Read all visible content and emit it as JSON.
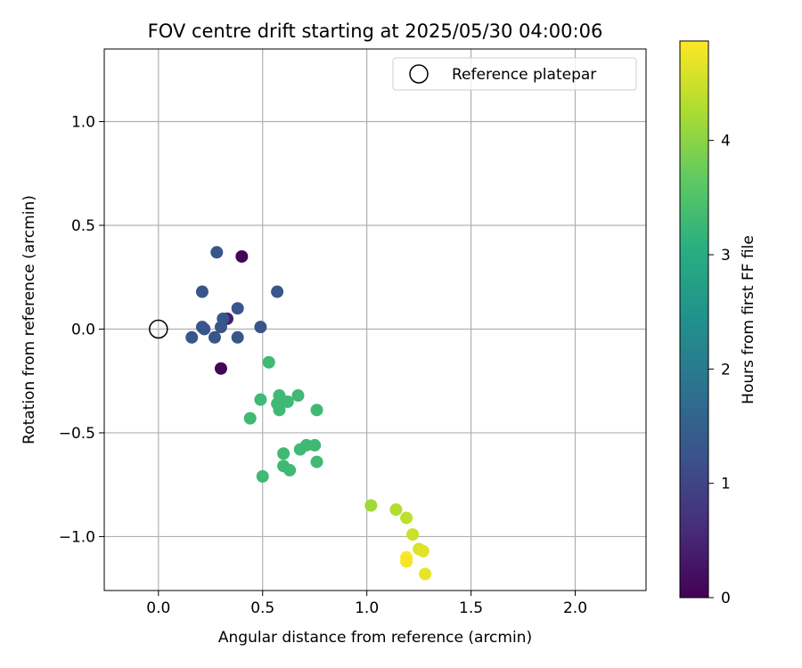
{
  "chart_data": {
    "type": "scatter",
    "title": "FOV centre drift starting at 2025/05/30 04:00:06",
    "xlabel": "Angular distance from reference (arcmin)",
    "ylabel": "Rotation from reference (arcmin)",
    "xlim": [
      -0.26,
      2.34
    ],
    "ylim": [
      -1.26,
      1.35
    ],
    "xticks": [
      0.0,
      0.5,
      1.0,
      1.5,
      2.0
    ],
    "xtick_labels": [
      "0.0",
      "0.5",
      "1.0",
      "1.5",
      "2.0"
    ],
    "yticks": [
      -1.0,
      -0.5,
      0.0,
      0.5,
      1.0
    ],
    "ytick_labels": [
      "−1.0",
      "−0.5",
      "0.0",
      "0.5",
      "1.0"
    ],
    "grid": true,
    "legend": {
      "position": "top-right",
      "entries": [
        "Reference platepar"
      ]
    },
    "reference": {
      "x": 0.0,
      "y": 0.0
    },
    "colorbar": {
      "label": "Hours from first FF file",
      "range": [
        0,
        4.87
      ],
      "ticks": [
        0,
        1,
        2,
        3,
        4
      ],
      "tick_labels": [
        "0",
        "1",
        "2",
        "3",
        "4"
      ],
      "colormap": "viridis"
    },
    "points": [
      {
        "x": 0.4,
        "y": 0.35,
        "hours": 0.05
      },
      {
        "x": 0.3,
        "y": -0.19,
        "hours": 0.05
      },
      {
        "x": 0.33,
        "y": 0.05,
        "hours": 0.4
      },
      {
        "x": 0.28,
        "y": 0.37,
        "hours": 1.3
      },
      {
        "x": 0.21,
        "y": 0.18,
        "hours": 1.3
      },
      {
        "x": 0.57,
        "y": 0.18,
        "hours": 1.3
      },
      {
        "x": 0.38,
        "y": 0.1,
        "hours": 1.3
      },
      {
        "x": 0.31,
        "y": 0.05,
        "hours": 1.3
      },
      {
        "x": 0.21,
        "y": 0.01,
        "hours": 1.3
      },
      {
        "x": 0.3,
        "y": 0.01,
        "hours": 1.3
      },
      {
        "x": 0.49,
        "y": 0.01,
        "hours": 1.3
      },
      {
        "x": 0.22,
        "y": 0.0,
        "hours": 1.3
      },
      {
        "x": 0.16,
        "y": -0.04,
        "hours": 1.3
      },
      {
        "x": 0.27,
        "y": -0.04,
        "hours": 1.3
      },
      {
        "x": 0.38,
        "y": -0.04,
        "hours": 1.3
      },
      {
        "x": 0.53,
        "y": -0.16,
        "hours": 3.3
      },
      {
        "x": 0.58,
        "y": -0.32,
        "hours": 3.3
      },
      {
        "x": 0.67,
        "y": -0.32,
        "hours": 3.3
      },
      {
        "x": 0.49,
        "y": -0.34,
        "hours": 3.3
      },
      {
        "x": 0.57,
        "y": -0.36,
        "hours": 3.3
      },
      {
        "x": 0.62,
        "y": -0.35,
        "hours": 3.3
      },
      {
        "x": 0.58,
        "y": -0.39,
        "hours": 3.3
      },
      {
        "x": 0.76,
        "y": -0.39,
        "hours": 3.3
      },
      {
        "x": 0.44,
        "y": -0.43,
        "hours": 3.3
      },
      {
        "x": 0.75,
        "y": -0.56,
        "hours": 3.3
      },
      {
        "x": 0.71,
        "y": -0.56,
        "hours": 3.3
      },
      {
        "x": 0.68,
        "y": -0.58,
        "hours": 3.3
      },
      {
        "x": 0.6,
        "y": -0.6,
        "hours": 3.3
      },
      {
        "x": 0.76,
        "y": -0.64,
        "hours": 3.3
      },
      {
        "x": 0.6,
        "y": -0.66,
        "hours": 3.3
      },
      {
        "x": 0.63,
        "y": -0.68,
        "hours": 3.3
      },
      {
        "x": 0.5,
        "y": -0.71,
        "hours": 3.3
      },
      {
        "x": 1.02,
        "y": -0.85,
        "hours": 4.15
      },
      {
        "x": 1.14,
        "y": -0.87,
        "hours": 4.3
      },
      {
        "x": 1.19,
        "y": -0.91,
        "hours": 4.4
      },
      {
        "x": 1.22,
        "y": -0.99,
        "hours": 4.5
      },
      {
        "x": 1.25,
        "y": -1.06,
        "hours": 4.6
      },
      {
        "x": 1.27,
        "y": -1.07,
        "hours": 4.65
      },
      {
        "x": 1.19,
        "y": -1.1,
        "hours": 4.87
      },
      {
        "x": 1.19,
        "y": -1.12,
        "hours": 4.8
      },
      {
        "x": 1.28,
        "y": -1.18,
        "hours": 4.7
      }
    ]
  }
}
